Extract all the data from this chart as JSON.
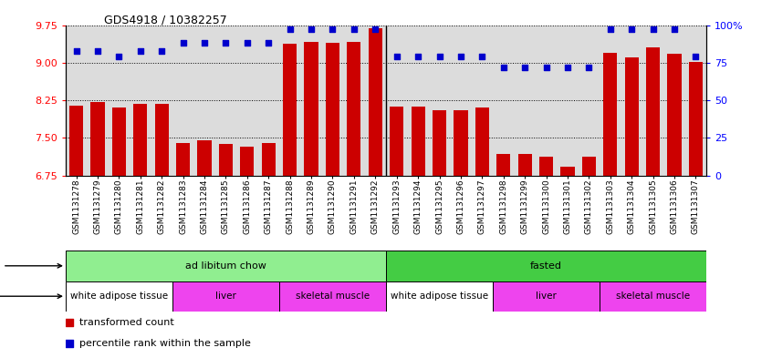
{
  "title": "GDS4918 / 10382257",
  "samples": [
    "GSM1131278",
    "GSM1131279",
    "GSM1131280",
    "GSM1131281",
    "GSM1131282",
    "GSM1131283",
    "GSM1131284",
    "GSM1131285",
    "GSM1131286",
    "GSM1131287",
    "GSM1131288",
    "GSM1131289",
    "GSM1131290",
    "GSM1131291",
    "GSM1131292",
    "GSM1131293",
    "GSM1131294",
    "GSM1131295",
    "GSM1131296",
    "GSM1131297",
    "GSM1131298",
    "GSM1131299",
    "GSM1131300",
    "GSM1131301",
    "GSM1131302",
    "GSM1131303",
    "GSM1131304",
    "GSM1131305",
    "GSM1131306",
    "GSM1131307"
  ],
  "bar_values": [
    8.15,
    8.22,
    8.1,
    8.18,
    8.18,
    7.4,
    7.45,
    7.38,
    7.32,
    7.4,
    9.38,
    9.42,
    9.4,
    9.42,
    9.68,
    8.12,
    8.12,
    8.05,
    8.05,
    8.1,
    7.18,
    7.18,
    7.12,
    6.92,
    7.12,
    9.2,
    9.1,
    9.3,
    9.18,
    9.02
  ],
  "blue_values": [
    83,
    83,
    79,
    83,
    83,
    88,
    88,
    88,
    88,
    88,
    97,
    97,
    97,
    97,
    97,
    79,
    79,
    79,
    79,
    79,
    72,
    72,
    72,
    72,
    72,
    97,
    97,
    97,
    97,
    79
  ],
  "ylim_left": [
    6.75,
    9.75
  ],
  "ylim_right": [
    0,
    100
  ],
  "yticks_left": [
    6.75,
    7.5,
    8.25,
    9.0,
    9.75
  ],
  "yticks_right": [
    0,
    25,
    50,
    75,
    100
  ],
  "bar_color": "#CC0000",
  "dot_color": "#0000CC",
  "bg_color": "#DCDCDC",
  "protocol_groups": [
    {
      "label": "ad libitum chow",
      "start": 0,
      "end": 14,
      "color": "#90EE90"
    },
    {
      "label": "fasted",
      "start": 15,
      "end": 29,
      "color": "#44CC44"
    }
  ],
  "tissue_groups": [
    {
      "label": "white adipose tissue",
      "start": 0,
      "end": 4,
      "color": "#FFFFFF"
    },
    {
      "label": "liver",
      "start": 5,
      "end": 9,
      "color": "#EE44EE"
    },
    {
      "label": "skeletal muscle",
      "start": 10,
      "end": 14,
      "color": "#EE44EE"
    },
    {
      "label": "white adipose tissue",
      "start": 15,
      "end": 19,
      "color": "#FFFFFF"
    },
    {
      "label": "liver",
      "start": 20,
      "end": 24,
      "color": "#EE44EE"
    },
    {
      "label": "skeletal muscle",
      "start": 25,
      "end": 29,
      "color": "#EE44EE"
    }
  ]
}
